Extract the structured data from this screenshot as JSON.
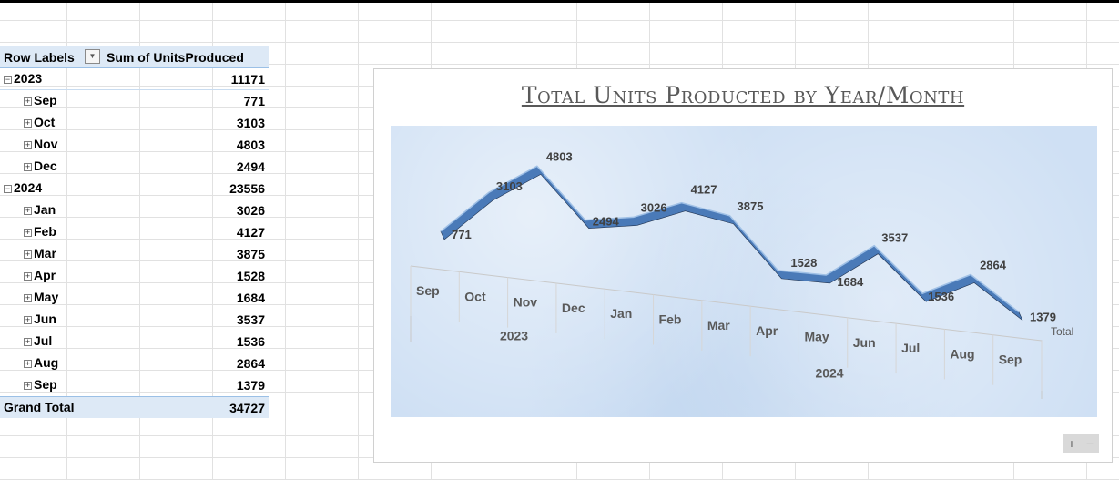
{
  "pivot": {
    "header": {
      "row_labels": "Row Labels",
      "sum_label": "Sum of UnitsProduced"
    },
    "rows": [
      {
        "label": "2023",
        "value": "11171",
        "level": 0,
        "toggle": "−"
      },
      {
        "label": "Sep",
        "value": "771",
        "level": 1,
        "toggle": "+"
      },
      {
        "label": "Oct",
        "value": "3103",
        "level": 1,
        "toggle": "+"
      },
      {
        "label": "Nov",
        "value": "4803",
        "level": 1,
        "toggle": "+"
      },
      {
        "label": "Dec",
        "value": "2494",
        "level": 1,
        "toggle": "+"
      },
      {
        "label": "2024",
        "value": "23556",
        "level": 0,
        "toggle": "−"
      },
      {
        "label": "Jan",
        "value": "3026",
        "level": 1,
        "toggle": "+"
      },
      {
        "label": "Feb",
        "value": "4127",
        "level": 1,
        "toggle": "+"
      },
      {
        "label": "Mar",
        "value": "3875",
        "level": 1,
        "toggle": "+"
      },
      {
        "label": "Apr",
        "value": "1528",
        "level": 1,
        "toggle": "+"
      },
      {
        "label": "May",
        "value": "1684",
        "level": 1,
        "toggle": "+"
      },
      {
        "label": "Jun",
        "value": "3537",
        "level": 1,
        "toggle": "+"
      },
      {
        "label": "Jul",
        "value": "1536",
        "level": 1,
        "toggle": "+"
      },
      {
        "label": "Aug",
        "value": "2864",
        "level": 1,
        "toggle": "+"
      },
      {
        "label": "Sep",
        "value": "1379",
        "level": 1,
        "toggle": "+"
      }
    ],
    "grand_total": {
      "label": "Grand Total",
      "value": "34727"
    }
  },
  "chart_data": {
    "type": "line",
    "title": "Total Units Producted by Year/Month",
    "categories": [
      "Sep",
      "Oct",
      "Nov",
      "Dec",
      "Jan",
      "Feb",
      "Mar",
      "Apr",
      "May",
      "Jun",
      "Jul",
      "Aug",
      "Sep"
    ],
    "groups": [
      {
        "name": "2023",
        "from": 0,
        "to": 3
      },
      {
        "name": "2024",
        "from": 4,
        "to": 12
      }
    ],
    "series": [
      {
        "name": "Total",
        "values": [
          771,
          3103,
          4803,
          2494,
          3026,
          4127,
          3875,
          1528,
          1684,
          3537,
          1536,
          2864,
          1379
        ]
      }
    ],
    "legend": "Total",
    "colors": {
      "line": "#4a7ab8",
      "line_dark": "#1f3250",
      "plot_bg": "#cfe0f4"
    }
  },
  "zoom": {
    "plus": "+",
    "minus": "−"
  }
}
